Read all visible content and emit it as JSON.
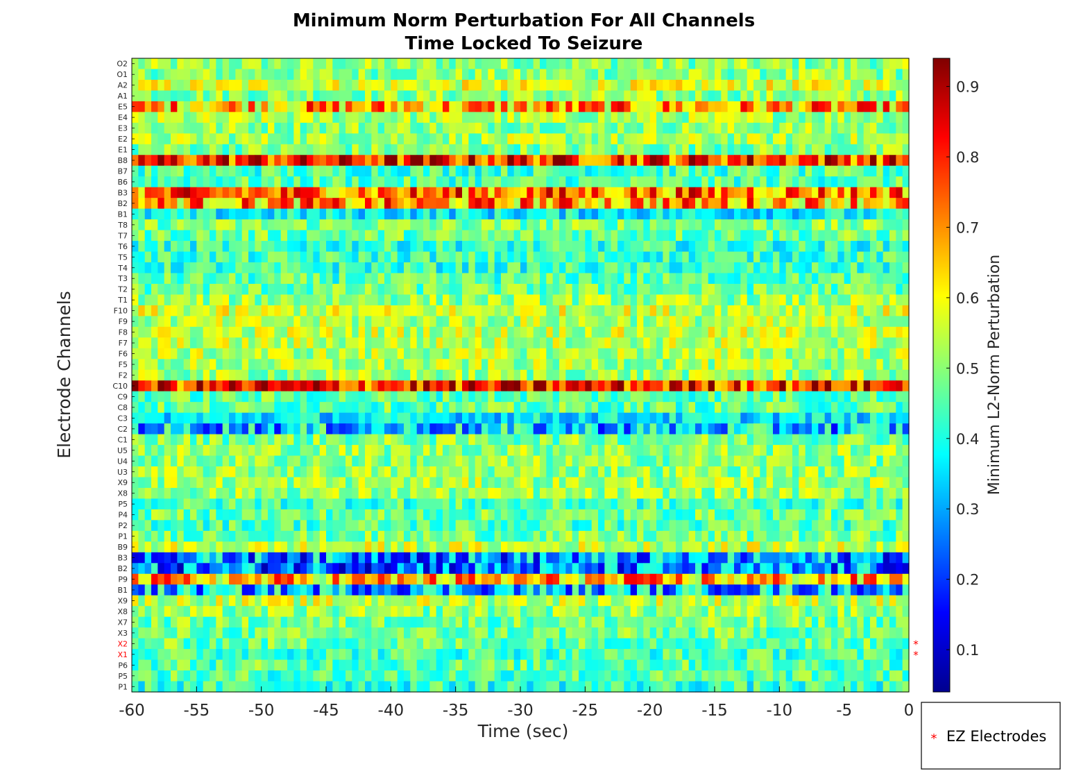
{
  "chart_data": {
    "type": "heatmap",
    "title": [
      "Minimum Norm Perturbation For All Channels",
      "Time Locked To Seizure"
    ],
    "xlabel": "Time (sec)",
    "ylabel": "Electrode Channels",
    "colorbar_label": "Minimum L2-Norm Perturbation",
    "xlim": [
      -60,
      0
    ],
    "x_ticks": [
      -60,
      -55,
      -50,
      -45,
      -40,
      -35,
      -30,
      -25,
      -20,
      -15,
      -10,
      -5,
      0
    ],
    "clim": [
      0.04,
      0.94
    ],
    "colorbar_ticks": [
      0.1,
      0.2,
      0.3,
      0.4,
      0.5,
      0.6,
      0.7,
      0.8,
      0.9
    ],
    "colormap": "jet",
    "time_bins": 120,
    "channels": [
      "O2",
      "O1",
      "A2",
      "A1",
      "E5",
      "E4",
      "E3",
      "E2",
      "E1",
      "B8",
      "B7",
      "B6",
      "B3",
      "B2",
      "B1",
      "T8",
      "T7",
      "T6",
      "T5",
      "T4",
      "T3",
      "T2",
      "T1",
      "F10",
      "F9",
      "F8",
      "F7",
      "F6",
      "F5",
      "F2",
      "C10",
      "C9",
      "C8",
      "C3",
      "C2",
      "C1",
      "U5",
      "U4",
      "U3",
      "X9",
      "X8",
      "P5",
      "P4",
      "P2",
      "P1",
      "B9",
      "B3",
      "B2",
      "P9",
      "B1",
      "X9",
      "X8",
      "X7",
      "X3",
      "X2",
      "X1",
      "P6",
      "P5",
      "P1"
    ],
    "channel_mean_values": [
      0.5,
      0.5,
      0.57,
      0.5,
      0.68,
      0.52,
      0.51,
      0.52,
      0.49,
      0.8,
      0.44,
      0.45,
      0.73,
      0.69,
      0.37,
      0.49,
      0.47,
      0.42,
      0.43,
      0.42,
      0.45,
      0.47,
      0.51,
      0.56,
      0.53,
      0.55,
      0.54,
      0.53,
      0.52,
      0.51,
      0.8,
      0.46,
      0.46,
      0.36,
      0.33,
      0.49,
      0.51,
      0.5,
      0.51,
      0.52,
      0.51,
      0.44,
      0.47,
      0.45,
      0.48,
      0.55,
      0.28,
      0.26,
      0.66,
      0.32,
      0.55,
      0.5,
      0.48,
      0.47,
      0.47,
      0.44,
      0.46,
      0.45,
      0.42
    ],
    "ez_electrodes": [
      "X2",
      "X1"
    ],
    "legend": {
      "marker": "*",
      "label": "EZ Electrodes",
      "location": "outside bottom-right"
    }
  }
}
